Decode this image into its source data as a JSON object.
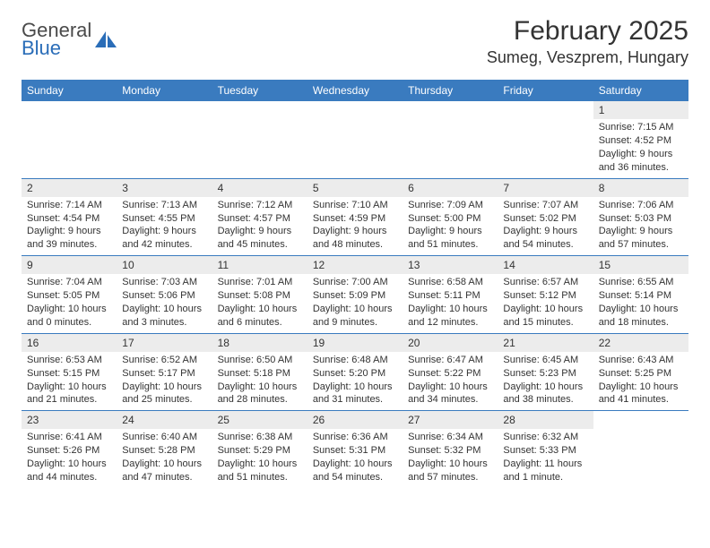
{
  "brand": {
    "line1": "General",
    "line2": "Blue"
  },
  "colors": {
    "header_bg": "#3a7bbf",
    "daynum_bg": "#ececec",
    "brand_blue": "#2a6db8",
    "text": "#333333",
    "divider": "#3a7bbf"
  },
  "title": "February 2025",
  "location": "Sumeg, Veszprem, Hungary",
  "day_names": [
    "Sunday",
    "Monday",
    "Tuesday",
    "Wednesday",
    "Thursday",
    "Friday",
    "Saturday"
  ],
  "weeks": [
    [
      {
        "n": "",
        "lines": []
      },
      {
        "n": "",
        "lines": []
      },
      {
        "n": "",
        "lines": []
      },
      {
        "n": "",
        "lines": []
      },
      {
        "n": "",
        "lines": []
      },
      {
        "n": "",
        "lines": []
      },
      {
        "n": "1",
        "lines": [
          "Sunrise: 7:15 AM",
          "Sunset: 4:52 PM",
          "Daylight: 9 hours and 36 minutes."
        ]
      }
    ],
    [
      {
        "n": "2",
        "lines": [
          "Sunrise: 7:14 AM",
          "Sunset: 4:54 PM",
          "Daylight: 9 hours and 39 minutes."
        ]
      },
      {
        "n": "3",
        "lines": [
          "Sunrise: 7:13 AM",
          "Sunset: 4:55 PM",
          "Daylight: 9 hours and 42 minutes."
        ]
      },
      {
        "n": "4",
        "lines": [
          "Sunrise: 7:12 AM",
          "Sunset: 4:57 PM",
          "Daylight: 9 hours and 45 minutes."
        ]
      },
      {
        "n": "5",
        "lines": [
          "Sunrise: 7:10 AM",
          "Sunset: 4:59 PM",
          "Daylight: 9 hours and 48 minutes."
        ]
      },
      {
        "n": "6",
        "lines": [
          "Sunrise: 7:09 AM",
          "Sunset: 5:00 PM",
          "Daylight: 9 hours and 51 minutes."
        ]
      },
      {
        "n": "7",
        "lines": [
          "Sunrise: 7:07 AM",
          "Sunset: 5:02 PM",
          "Daylight: 9 hours and 54 minutes."
        ]
      },
      {
        "n": "8",
        "lines": [
          "Sunrise: 7:06 AM",
          "Sunset: 5:03 PM",
          "Daylight: 9 hours and 57 minutes."
        ]
      }
    ],
    [
      {
        "n": "9",
        "lines": [
          "Sunrise: 7:04 AM",
          "Sunset: 5:05 PM",
          "Daylight: 10 hours and 0 minutes."
        ]
      },
      {
        "n": "10",
        "lines": [
          "Sunrise: 7:03 AM",
          "Sunset: 5:06 PM",
          "Daylight: 10 hours and 3 minutes."
        ]
      },
      {
        "n": "11",
        "lines": [
          "Sunrise: 7:01 AM",
          "Sunset: 5:08 PM",
          "Daylight: 10 hours and 6 minutes."
        ]
      },
      {
        "n": "12",
        "lines": [
          "Sunrise: 7:00 AM",
          "Sunset: 5:09 PM",
          "Daylight: 10 hours and 9 minutes."
        ]
      },
      {
        "n": "13",
        "lines": [
          "Sunrise: 6:58 AM",
          "Sunset: 5:11 PM",
          "Daylight: 10 hours and 12 minutes."
        ]
      },
      {
        "n": "14",
        "lines": [
          "Sunrise: 6:57 AM",
          "Sunset: 5:12 PM",
          "Daylight: 10 hours and 15 minutes."
        ]
      },
      {
        "n": "15",
        "lines": [
          "Sunrise: 6:55 AM",
          "Sunset: 5:14 PM",
          "Daylight: 10 hours and 18 minutes."
        ]
      }
    ],
    [
      {
        "n": "16",
        "lines": [
          "Sunrise: 6:53 AM",
          "Sunset: 5:15 PM",
          "Daylight: 10 hours and 21 minutes."
        ]
      },
      {
        "n": "17",
        "lines": [
          "Sunrise: 6:52 AM",
          "Sunset: 5:17 PM",
          "Daylight: 10 hours and 25 minutes."
        ]
      },
      {
        "n": "18",
        "lines": [
          "Sunrise: 6:50 AM",
          "Sunset: 5:18 PM",
          "Daylight: 10 hours and 28 minutes."
        ]
      },
      {
        "n": "19",
        "lines": [
          "Sunrise: 6:48 AM",
          "Sunset: 5:20 PM",
          "Daylight: 10 hours and 31 minutes."
        ]
      },
      {
        "n": "20",
        "lines": [
          "Sunrise: 6:47 AM",
          "Sunset: 5:22 PM",
          "Daylight: 10 hours and 34 minutes."
        ]
      },
      {
        "n": "21",
        "lines": [
          "Sunrise: 6:45 AM",
          "Sunset: 5:23 PM",
          "Daylight: 10 hours and 38 minutes."
        ]
      },
      {
        "n": "22",
        "lines": [
          "Sunrise: 6:43 AM",
          "Sunset: 5:25 PM",
          "Daylight: 10 hours and 41 minutes."
        ]
      }
    ],
    [
      {
        "n": "23",
        "lines": [
          "Sunrise: 6:41 AM",
          "Sunset: 5:26 PM",
          "Daylight: 10 hours and 44 minutes."
        ]
      },
      {
        "n": "24",
        "lines": [
          "Sunrise: 6:40 AM",
          "Sunset: 5:28 PM",
          "Daylight: 10 hours and 47 minutes."
        ]
      },
      {
        "n": "25",
        "lines": [
          "Sunrise: 6:38 AM",
          "Sunset: 5:29 PM",
          "Daylight: 10 hours and 51 minutes."
        ]
      },
      {
        "n": "26",
        "lines": [
          "Sunrise: 6:36 AM",
          "Sunset: 5:31 PM",
          "Daylight: 10 hours and 54 minutes."
        ]
      },
      {
        "n": "27",
        "lines": [
          "Sunrise: 6:34 AM",
          "Sunset: 5:32 PM",
          "Daylight: 10 hours and 57 minutes."
        ]
      },
      {
        "n": "28",
        "lines": [
          "Sunrise: 6:32 AM",
          "Sunset: 5:33 PM",
          "Daylight: 11 hours and 1 minute."
        ]
      },
      {
        "n": "",
        "lines": []
      }
    ]
  ]
}
